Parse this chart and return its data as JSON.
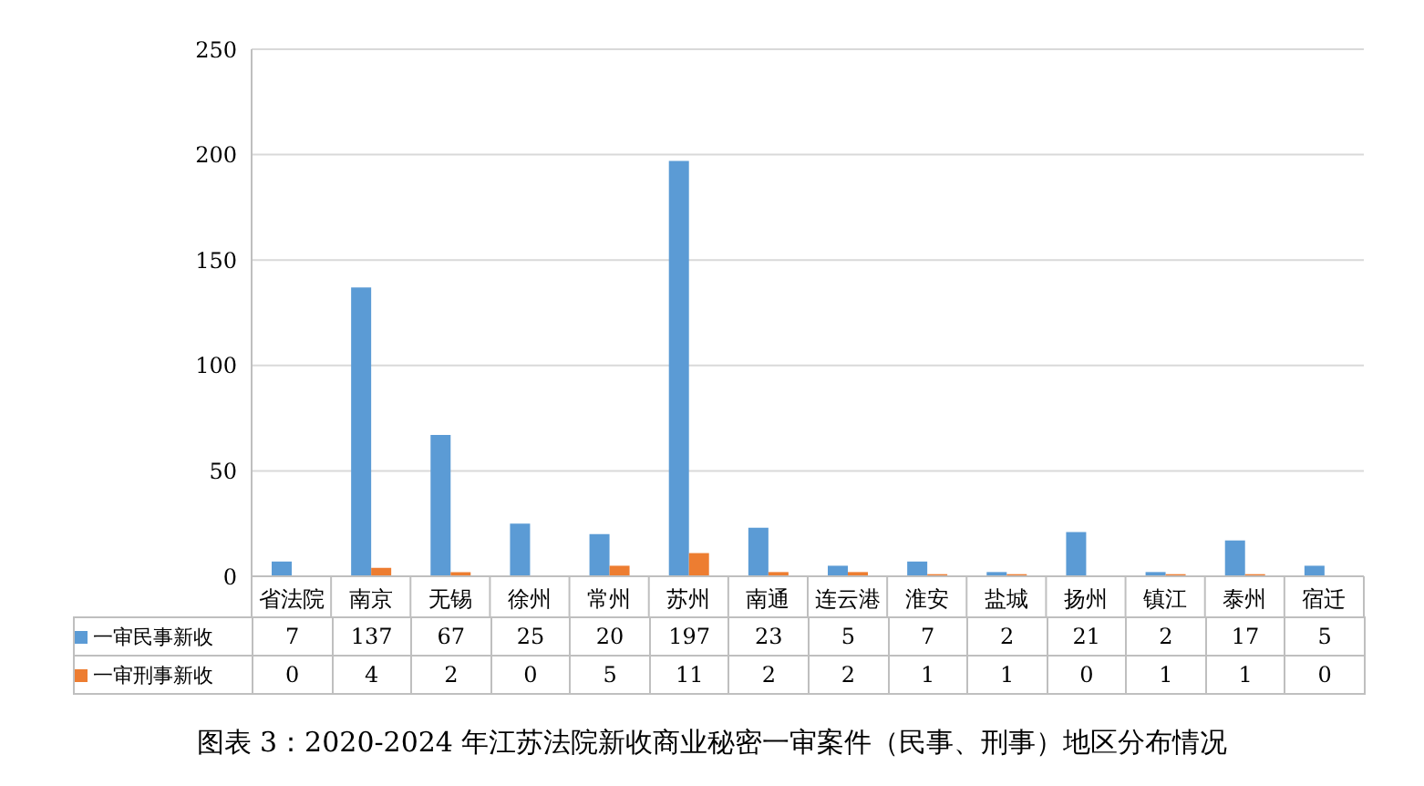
{
  "chart_data": {
    "type": "bar",
    "categories": [
      "省法院",
      "南京",
      "无锡",
      "徐州",
      "常州",
      "苏州",
      "南通",
      "连云港",
      "淮安",
      "盐城",
      "扬州",
      "镇江",
      "泰州",
      "宿迁"
    ],
    "series": [
      {
        "name": "一审民事新收",
        "color": "#5b9bd5",
        "values": [
          7,
          137,
          67,
          25,
          20,
          197,
          23,
          5,
          7,
          2,
          21,
          2,
          17,
          5
        ]
      },
      {
        "name": "一审刑事新收",
        "color": "#ed7d31",
        "values": [
          0,
          4,
          2,
          0,
          5,
          11,
          2,
          2,
          1,
          1,
          0,
          1,
          1,
          0
        ]
      }
    ],
    "ylim": [
      0,
      250
    ],
    "yticks": [
      0,
      50,
      100,
      150,
      200,
      250
    ],
    "grid": "y",
    "legend": "bottom left",
    "data_labels": true,
    "annotations": [
      "图表 3：2020-2024 年江苏法院新收商业秘密一审案件（民事、刑事）地区分布情况"
    ]
  }
}
